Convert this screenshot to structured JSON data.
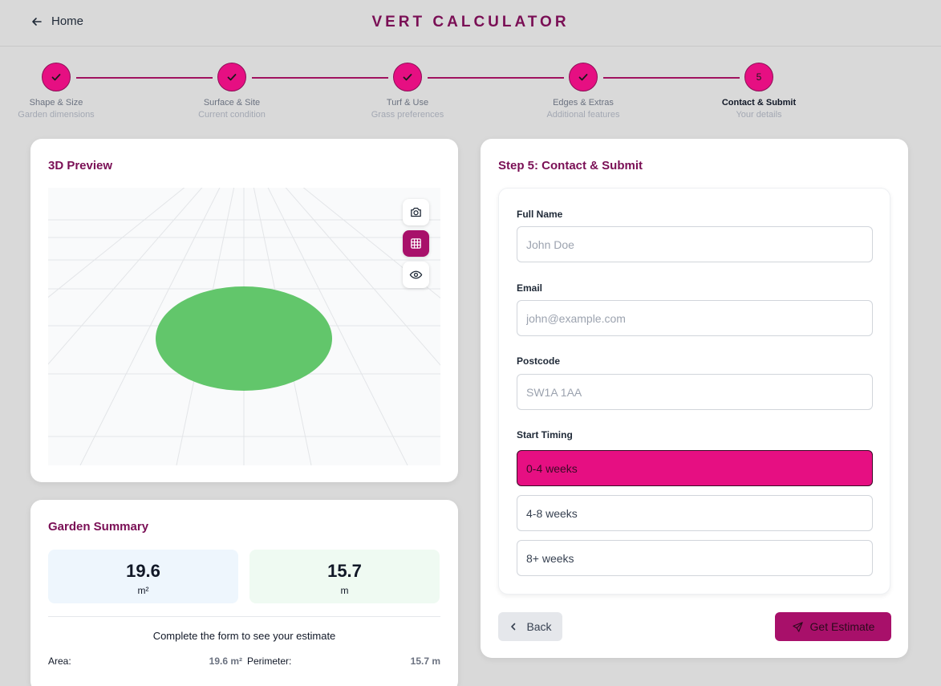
{
  "header": {
    "home_label": "Home",
    "title": "VERT CALCULATOR"
  },
  "stepper": {
    "steps": [
      {
        "title": "Shape & Size",
        "subtitle": "Garden dimensions",
        "state": "done"
      },
      {
        "title": "Surface & Site",
        "subtitle": "Current condition",
        "state": "done"
      },
      {
        "title": "Turf & Use",
        "subtitle": "Grass preferences",
        "state": "done"
      },
      {
        "title": "Edges & Extras",
        "subtitle": "Additional features",
        "state": "done"
      },
      {
        "title": "Contact & Submit",
        "subtitle": "Your details",
        "state": "active",
        "number": "5"
      }
    ]
  },
  "preview": {
    "title": "3D Preview",
    "tools": [
      "camera-icon",
      "grid-icon",
      "eye-icon"
    ],
    "shape_color": "#62c66b"
  },
  "summary": {
    "title": "Garden Summary",
    "area_value": "19.6",
    "area_unit": "m²",
    "perimeter_value": "15.7",
    "perimeter_unit": "m",
    "note": "Complete the form to see your estimate",
    "area_label": "Area:",
    "area_display": "19.6 m²",
    "perimeter_label": "Perimeter:",
    "perimeter_display": "15.7 m"
  },
  "form": {
    "title": "Step 5: Contact & Submit",
    "full_name_label": "Full Name",
    "full_name_placeholder": "John Doe",
    "email_label": "Email",
    "email_placeholder": "john@example.com",
    "postcode_label": "Postcode",
    "postcode_placeholder": "SW1A 1AA",
    "timing_label": "Start Timing",
    "timing_options": [
      "0-4 weeks",
      "4-8 weeks",
      "8+ weeks"
    ],
    "timing_selected": "0-4 weeks",
    "back_label": "Back",
    "submit_label": "Get Estimate"
  },
  "colors": {
    "brand": "#7a0f55",
    "accent": "#e60f82",
    "button": "#a8106a"
  }
}
